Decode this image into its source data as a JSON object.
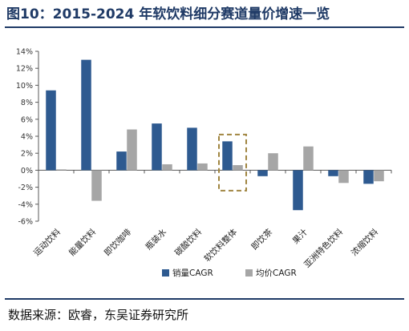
{
  "title": "图10：2015-2024 年软饮料细分赛道量价增速一览",
  "source": "数据来源：欧睿，东吴证券研究所",
  "colors": {
    "volume": "#2e5a90",
    "price": "#a6a6a6",
    "highlight_box": "#a08540",
    "title": "#1f3a66"
  },
  "chart_data": {
    "type": "bar",
    "title": "图10：2015-2024 年软饮料细分赛道量价增速一览",
    "xlabel": "",
    "ylabel": "",
    "ylim": [
      -6,
      14
    ],
    "y_ticks": [
      -6,
      -4,
      -2,
      0,
      2,
      4,
      6,
      8,
      10,
      12,
      14
    ],
    "y_tick_labels": [
      "-6%",
      "-4%",
      "-2%",
      "0%",
      "2%",
      "4%",
      "6%",
      "8%",
      "10%",
      "12%",
      "14%"
    ],
    "categories": [
      "运动饮料",
      "能量饮料",
      "即饮咖啡",
      "瓶装水",
      "碳酸饮料",
      "软饮料整体",
      "即饮茶",
      "果汁",
      "亚洲特色饮料",
      "浓缩饮料"
    ],
    "highlighted_category": "软饮料整体",
    "grid": false,
    "legend_position": "bottom-center",
    "series": [
      {
        "name": "销量CAGR",
        "values": [
          9.4,
          13.0,
          2.2,
          5.5,
          5.0,
          3.4,
          -0.7,
          -4.7,
          -0.7,
          -1.6
        ]
      },
      {
        "name": "均价CAGR",
        "values": [
          0.1,
          -3.6,
          4.8,
          0.7,
          0.8,
          0.6,
          2.0,
          2.8,
          -1.5,
          -1.3
        ]
      }
    ]
  }
}
